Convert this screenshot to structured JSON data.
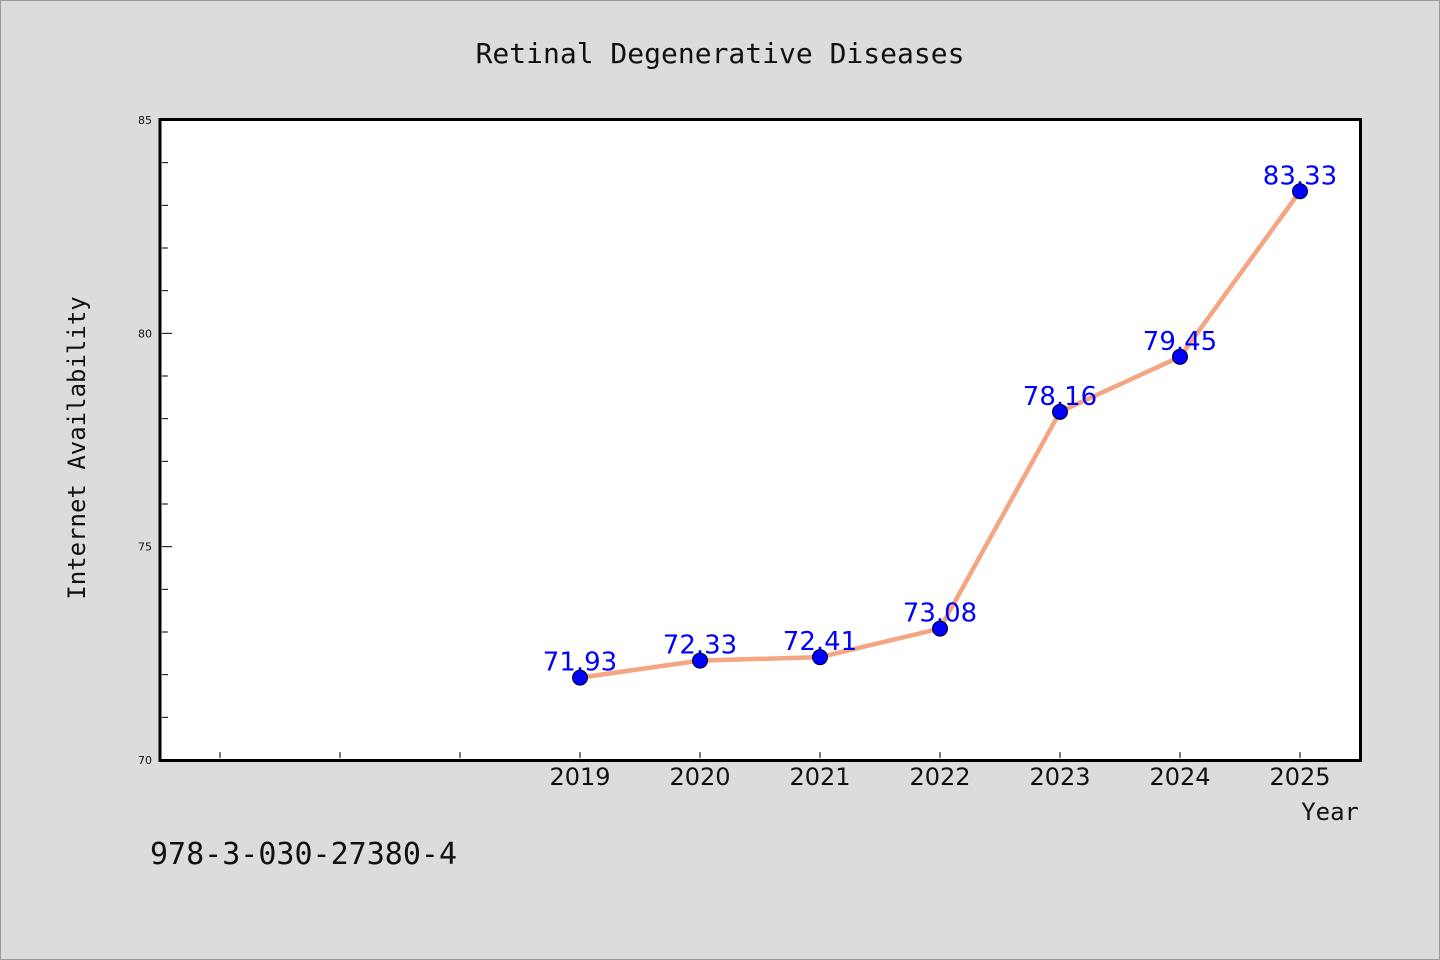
{
  "chart_data": {
    "type": "line",
    "title": "Retinal Degenerative Diseases",
    "xlabel": "Year",
    "ylabel": "Internet Availability",
    "categories": [
      "2019",
      "2020",
      "2021",
      "2022",
      "2023",
      "2024",
      "2025"
    ],
    "series": [
      {
        "values": [
          71.93,
          72.33,
          72.41,
          73.08,
          78.16,
          79.45,
          83.33
        ],
        "labels": [
          "71.93",
          "72.33",
          "72.41",
          "73.08",
          "78.16",
          "79.45",
          "83.33"
        ]
      }
    ],
    "ylim": [
      70,
      85
    ],
    "yticks": [
      70,
      75,
      80,
      85
    ],
    "grid": false,
    "legend": "none",
    "colors": {
      "line": "#f4a582",
      "marker": "#0000ff",
      "labels": "#0000ff",
      "background": "#dcdcdc",
      "plot_area": "#ffffff"
    }
  },
  "footer": {
    "isbn": "978-3-030-27380-4"
  }
}
